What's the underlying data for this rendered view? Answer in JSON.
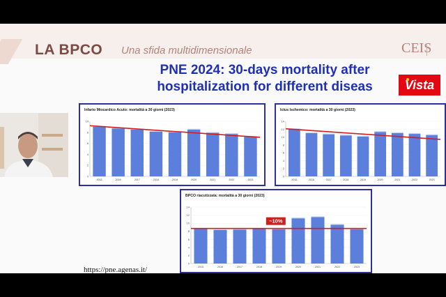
{
  "header": {
    "brand": "LA BPCO",
    "tagline": "Una sfida multidimensionale",
    "logo": "CEIS"
  },
  "title_line1": "PNE 2024: 30-days mortality after",
  "title_line2": "hospitalization for different diseas",
  "watermark": "Vista",
  "url": "https://pne.agenas.it/",
  "chart_data": [
    {
      "type": "bar",
      "title": "Infarto Miocardico Acuto: mortalità a 30 giorni (2023)",
      "categories": [
        "2015",
        "2016",
        "2017",
        "2018",
        "2019",
        "2020",
        "2021",
        "2022",
        "2023"
      ],
      "values": [
        9.0,
        8.7,
        8.5,
        8.1,
        8.0,
        8.5,
        7.9,
        7.7,
        7.2
      ],
      "ylim": [
        0,
        10
      ],
      "yticks": [
        "0",
        "2",
        "4",
        "6",
        "8",
        "10"
      ],
      "trend": [
        9.2,
        7.1
      ],
      "bar_color": "#5b7fdb",
      "trend_color": "#d11f1f"
    },
    {
      "type": "bar",
      "title": "Ictus Ischemico: mortalità a 30 giorni (2023)",
      "categories": [
        "2015",
        "2016",
        "2017",
        "2018",
        "2019",
        "2020",
        "2021",
        "2022",
        "2023"
      ],
      "values": [
        12.0,
        11.0,
        10.7,
        10.4,
        10.1,
        11.3,
        11.0,
        10.8,
        10.5
      ],
      "ylim": [
        0,
        14
      ],
      "yticks": [
        "0",
        "2",
        "4",
        "6",
        "8",
        "10",
        "12",
        "14"
      ],
      "trend": [
        12.1,
        9.4
      ],
      "bar_color": "#5b7fdb",
      "trend_color": "#d11f1f"
    },
    {
      "type": "bar",
      "title": "BPCO riacutizzata: mortalità a 30 giorni (2023)",
      "categories": [
        "2015",
        "2016",
        "2017",
        "2018",
        "2019",
        "2020",
        "2021",
        "2022",
        "2023"
      ],
      "values": [
        8.6,
        8.3,
        8.4,
        8.6,
        8.5,
        11.2,
        11.5,
        9.6,
        8.5
      ],
      "ylim": [
        0,
        14
      ],
      "yticks": [
        "0",
        "2",
        "4",
        "6",
        "8",
        "10",
        "12",
        "14"
      ],
      "trend": [
        8.7,
        8.7
      ],
      "annotation": "~10%",
      "bar_color": "#5b7fdb",
      "trend_color": "#d11f1f"
    }
  ]
}
